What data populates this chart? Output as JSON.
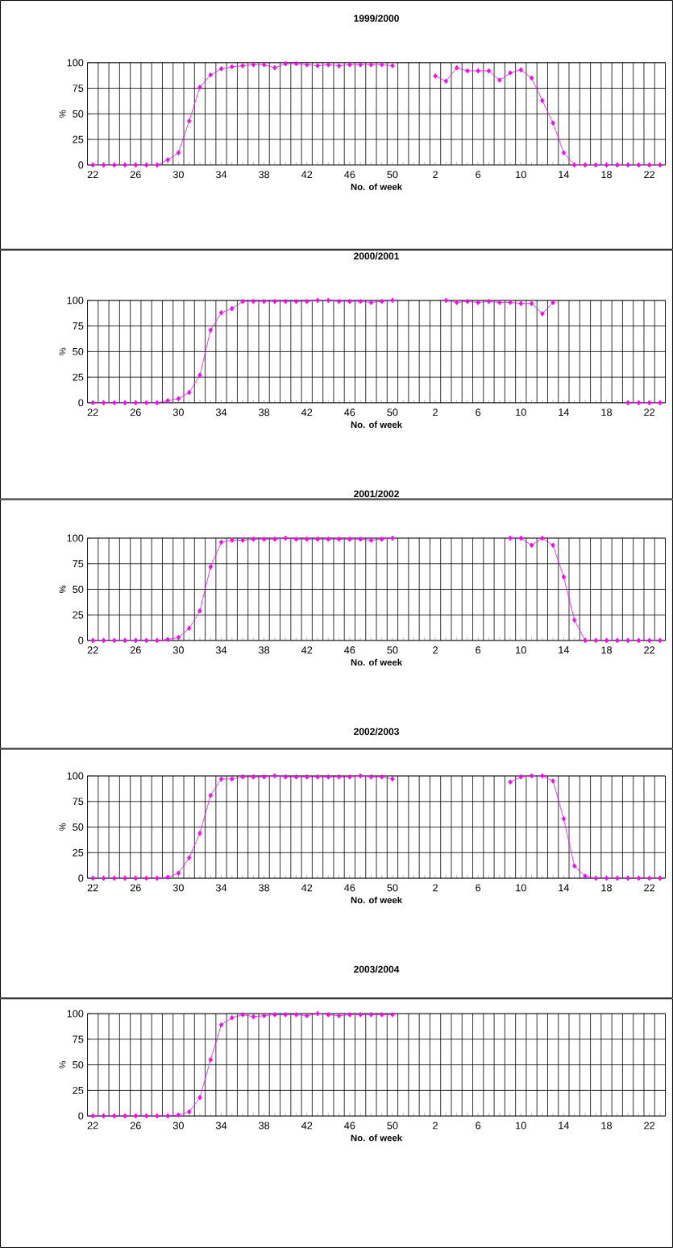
{
  "chart_data": [
    {
      "type": "line",
      "title": "1999/2000",
      "xlabel": "No. of week",
      "ylabel": "%",
      "color": "#ff00ff",
      "marker": "diamond",
      "grid": true,
      "ylim": [
        0,
        100
      ],
      "yticks": [
        0,
        25,
        50,
        75,
        100
      ],
      "categories": [
        "22",
        null,
        null,
        null,
        "26",
        null,
        null,
        null,
        "30",
        null,
        null,
        null,
        "34",
        null,
        null,
        null,
        "38",
        null,
        null,
        null,
        "42",
        null,
        null,
        null,
        "46",
        null,
        null,
        null,
        "50",
        null,
        null,
        null,
        "2",
        null,
        null,
        null,
        "6",
        null,
        null,
        null,
        "10",
        null,
        null,
        null,
        "14",
        null,
        null,
        null,
        "18",
        null,
        null,
        null,
        "22",
        null
      ],
      "values": [
        0,
        0,
        0,
        0,
        0,
        0,
        0,
        5,
        12,
        43,
        76,
        88,
        94,
        96,
        97,
        98,
        98,
        95,
        99,
        99,
        98,
        97,
        98,
        97,
        98,
        98,
        98,
        98,
        97,
        null,
        null,
        null,
        87,
        82,
        95,
        92,
        92,
        92,
        83,
        90,
        93,
        85,
        63,
        41,
        12,
        0,
        0,
        0,
        0,
        0,
        0,
        0,
        0,
        0
      ]
    },
    {
      "type": "line",
      "title": "2000/2001",
      "xlabel": "No. of week",
      "ylabel": "%",
      "color": "#ff00ff",
      "marker": "diamond",
      "grid": true,
      "ylim": [
        0,
        100
      ],
      "yticks": [
        0,
        25,
        50,
        75,
        100
      ],
      "categories": [
        "22",
        null,
        null,
        null,
        "26",
        null,
        null,
        null,
        "30",
        null,
        null,
        null,
        "34",
        null,
        null,
        null,
        "38",
        null,
        null,
        null,
        "42",
        null,
        null,
        null,
        "46",
        null,
        null,
        null,
        "50",
        null,
        null,
        null,
        "2",
        null,
        null,
        null,
        "6",
        null,
        null,
        null,
        "10",
        null,
        null,
        null,
        "14",
        null,
        null,
        null,
        "18",
        null,
        null,
        null,
        "22",
        null
      ],
      "values": [
        0,
        0,
        0,
        0,
        0,
        0,
        0,
        2,
        4,
        10,
        27,
        71,
        88,
        92,
        99,
        99,
        99,
        99,
        99,
        99,
        99,
        100,
        100,
        99,
        99,
        99,
        98,
        99,
        100,
        null,
        null,
        null,
        null,
        100,
        98,
        99,
        98,
        99,
        98,
        98,
        97,
        97,
        87,
        98,
        null,
        null,
        null,
        null,
        null,
        null,
        0,
        0,
        0,
        0
      ]
    },
    {
      "type": "line",
      "title": "2001/2002",
      "xlabel": "No. of week",
      "ylabel": "%",
      "color": "#ff00ff",
      "marker": "diamond",
      "grid": true,
      "ylim": [
        0,
        100
      ],
      "yticks": [
        0,
        25,
        50,
        75,
        100
      ],
      "categories": [
        "22",
        null,
        null,
        null,
        "26",
        null,
        null,
        null,
        "30",
        null,
        null,
        null,
        "34",
        null,
        null,
        null,
        "38",
        null,
        null,
        null,
        "42",
        null,
        null,
        null,
        "46",
        null,
        null,
        null,
        "50",
        null,
        null,
        null,
        "2",
        null,
        null,
        null,
        "6",
        null,
        null,
        null,
        "10",
        null,
        null,
        null,
        "14",
        null,
        null,
        null,
        "18",
        null,
        null,
        null,
        "22",
        null
      ],
      "values": [
        0,
        0,
        0,
        0,
        0,
        0,
        0,
        1,
        3,
        12,
        29,
        72,
        96,
        98,
        98,
        99,
        99,
        99,
        100,
        99,
        99,
        99,
        99,
        99,
        99,
        99,
        98,
        99,
        100,
        null,
        null,
        null,
        null,
        null,
        null,
        null,
        null,
        null,
        null,
        100,
        100,
        93,
        100,
        93,
        62,
        20,
        0,
        0,
        0,
        0,
        0,
        0,
        0,
        0
      ]
    },
    {
      "type": "line",
      "title": "2002/2003",
      "xlabel": "No. of week",
      "ylabel": "%",
      "color": "#ff00ff",
      "marker": "diamond",
      "grid": true,
      "ylim": [
        0,
        100
      ],
      "yticks": [
        0,
        25,
        50,
        75,
        100
      ],
      "categories": [
        "22",
        null,
        null,
        null,
        "26",
        null,
        null,
        null,
        "30",
        null,
        null,
        null,
        "34",
        null,
        null,
        null,
        "38",
        null,
        null,
        null,
        "42",
        null,
        null,
        null,
        "46",
        null,
        null,
        null,
        "50",
        null,
        null,
        null,
        "2",
        null,
        null,
        null,
        "6",
        null,
        null,
        null,
        "10",
        null,
        null,
        null,
        "14",
        null,
        null,
        null,
        "18",
        null,
        null,
        null,
        "22",
        null
      ],
      "values": [
        0,
        0,
        0,
        0,
        0,
        0,
        0,
        1,
        5,
        20,
        44,
        81,
        97,
        97,
        99,
        99,
        99,
        100,
        99,
        99,
        99,
        99,
        99,
        99,
        99,
        100,
        99,
        99,
        97,
        null,
        null,
        null,
        null,
        null,
        null,
        null,
        null,
        null,
        null,
        94,
        99,
        100,
        100,
        95,
        58,
        12,
        2,
        0,
        0,
        0,
        0,
        0,
        0,
        0
      ]
    },
    {
      "type": "line",
      "title": "2003/2004",
      "xlabel": "No. of week",
      "ylabel": "%",
      "color": "#ff00ff",
      "marker": "diamond",
      "grid": true,
      "ylim": [
        0,
        100
      ],
      "yticks": [
        0,
        25,
        50,
        75,
        100
      ],
      "categories": [
        "22",
        null,
        null,
        null,
        "26",
        null,
        null,
        null,
        "30",
        null,
        null,
        null,
        "34",
        null,
        null,
        null,
        "38",
        null,
        null,
        null,
        "42",
        null,
        null,
        null,
        "46",
        null,
        null,
        null,
        "50",
        null,
        null,
        null,
        "2",
        null,
        null,
        null,
        "6",
        null,
        null,
        null,
        "10",
        null,
        null,
        null,
        "14",
        null,
        null,
        null,
        "18",
        null,
        null,
        null,
        "22",
        null
      ],
      "values": [
        0,
        0,
        0,
        0,
        0,
        0,
        0,
        0,
        1,
        4,
        18,
        55,
        89,
        96,
        99,
        97,
        98,
        99,
        99,
        99,
        98,
        100,
        99,
        98,
        99,
        99,
        99,
        99,
        99,
        null,
        null,
        null,
        null,
        null,
        null,
        null,
        null,
        null,
        null,
        null,
        null,
        null,
        null,
        null,
        null,
        null,
        null,
        null,
        null,
        null,
        null,
        null,
        null,
        null
      ]
    }
  ]
}
